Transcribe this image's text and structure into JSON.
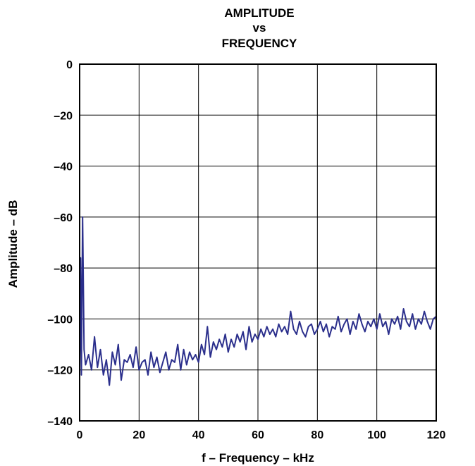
{
  "chart_data": {
    "type": "line",
    "title": [
      "AMPLITUDE",
      "vs",
      "FREQUENCY"
    ],
    "xlabel": "f – Frequency – kHz",
    "ylabel": "Amplitude – dB",
    "xlim": [
      0,
      120
    ],
    "ylim": [
      -140,
      0
    ],
    "xticks": [
      0,
      20,
      40,
      60,
      80,
      100,
      120
    ],
    "xtick_labels": [
      "0",
      "20",
      "40",
      "60",
      "80",
      "100",
      "120"
    ],
    "yticks": [
      0,
      -20,
      -40,
      -60,
      -80,
      -100,
      -120,
      -140
    ],
    "ytick_labels": [
      "0",
      "–20",
      "–40",
      "–60",
      "–80",
      "–100",
      "–120",
      "–140"
    ],
    "grid": true,
    "line_color": "#2b2f8c",
    "series": [
      {
        "x": [
          0,
          0.3,
          0.6,
          1,
          1.5,
          2,
          3,
          4,
          5,
          6,
          7,
          8,
          9,
          10,
          11,
          12,
          13,
          14,
          15,
          16,
          17,
          18,
          19,
          20,
          21,
          22,
          23,
          24,
          25,
          26,
          27,
          28,
          29,
          30,
          31,
          32,
          33,
          34,
          35,
          36,
          37,
          38,
          39,
          40,
          41,
          42,
          43,
          44,
          45,
          46,
          47,
          48,
          49,
          50,
          51,
          52,
          53,
          54,
          55,
          56,
          57,
          58,
          59,
          60,
          61,
          62,
          63,
          64,
          65,
          66,
          67,
          68,
          69,
          70,
          71,
          72,
          73,
          74,
          75,
          76,
          77,
          78,
          79,
          80,
          81,
          82,
          83,
          84,
          85,
          86,
          87,
          88,
          89,
          90,
          91,
          92,
          93,
          94,
          95,
          96,
          97,
          98,
          99,
          100,
          101,
          102,
          103,
          104,
          105,
          106,
          107,
          108,
          109,
          110,
          111,
          112,
          113,
          114,
          115,
          116,
          117,
          118,
          119,
          120
        ],
        "y": [
          -120,
          -76,
          -122,
          -60,
          -112,
          -118,
          -114,
          -120,
          -107,
          -119,
          -112,
          -122,
          -116,
          -126,
          -113,
          -118,
          -110,
          -124,
          -116,
          -117,
          -114,
          -119,
          -111,
          -120,
          -117,
          -116,
          -122,
          -113,
          -119,
          -115,
          -121,
          -117,
          -113,
          -120,
          -116,
          -117,
          -110,
          -120,
          -112,
          -118,
          -113,
          -116,
          -114,
          -117,
          -110,
          -114,
          -103,
          -115,
          -109,
          -112,
          -108,
          -111,
          -106,
          -113,
          -108,
          -111,
          -106,
          -109,
          -105,
          -112,
          -103,
          -109,
          -106,
          -108,
          -104,
          -107,
          -103,
          -106,
          -104,
          -107,
          -102,
          -105,
          -103,
          -106,
          -97,
          -104,
          -106,
          -101,
          -105,
          -107,
          -103,
          -102,
          -106,
          -104,
          -101,
          -105,
          -102,
          -107,
          -103,
          -104,
          -99,
          -105,
          -102,
          -100,
          -106,
          -101,
          -104,
          -98,
          -102,
          -105,
          -101,
          -103,
          -100,
          -104,
          -98,
          -103,
          -101,
          -106,
          -100,
          -102,
          -99,
          -104,
          -96,
          -101,
          -103,
          -98,
          -104,
          -100,
          -102,
          -97,
          -101,
          -104,
          -100,
          -99
        ]
      }
    ]
  }
}
